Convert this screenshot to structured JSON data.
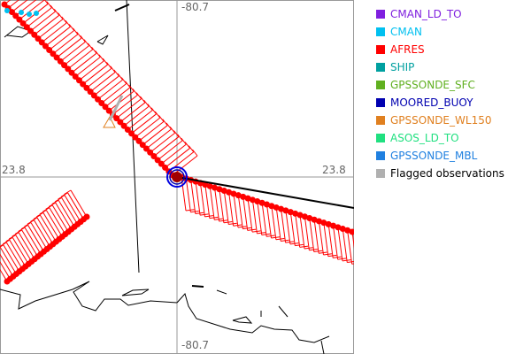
{
  "map": {
    "top_label": "-80.7",
    "bottom_label": "-80.7",
    "left_label": "23.8",
    "right_label": "23.8"
  },
  "legend": [
    {
      "label": "CMAN_LD_TO",
      "color": "#7f1fdf"
    },
    {
      "label": "CMAN",
      "color": "#00c0f0"
    },
    {
      "label": "AFRES",
      "color": "#ff0000"
    },
    {
      "label": "SHIP",
      "color": "#00a0a0"
    },
    {
      "label": "GPSSONDE_SFC",
      "color": "#60b020"
    },
    {
      "label": "MOORED_BUOY",
      "color": "#0000b0"
    },
    {
      "label": "GPSSONDE_WL150",
      "color": "#e08020"
    },
    {
      "label": "ASOS_LD_TO",
      "color": "#20e080"
    },
    {
      "label": "GPSSONDE_MBL",
      "color": "#2080e0"
    },
    {
      "label": "Flagged observations",
      "color": "#b0b0b0",
      "text_color": "#000000"
    }
  ]
}
